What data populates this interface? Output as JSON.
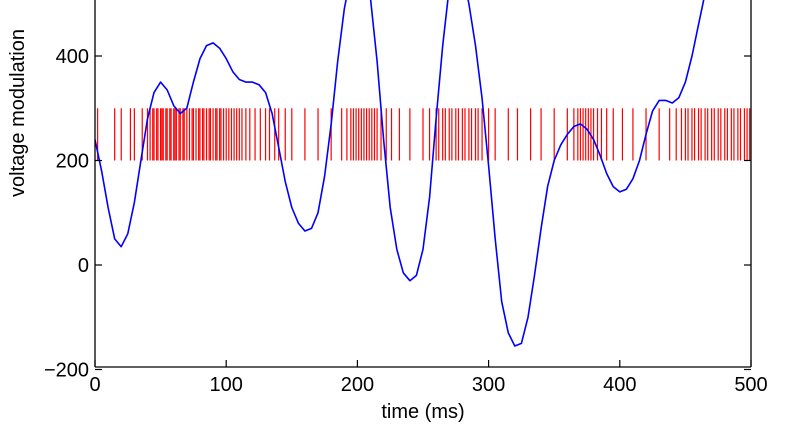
{
  "chart_data": {
    "type": "line",
    "title": "",
    "xlabel": "time (ms)",
    "ylabel": "voltage modulation",
    "xlim": [
      0,
      500
    ],
    "ylim": [
      -200,
      580
    ],
    "xticks": [
      0,
      100,
      200,
      300,
      400,
      500
    ],
    "xtick_labels": [
      "0",
      "100",
      "200",
      "300",
      "400",
      "500"
    ],
    "yticks": [
      -200,
      0,
      200,
      400
    ],
    "ytick_labels": [
      "−200",
      "0",
      "200",
      "400"
    ],
    "grid": false,
    "legend": "none",
    "colors": {
      "series": "#0000ff",
      "spikes": "#ff0000"
    },
    "series": [
      {
        "x": [
          0,
          5,
          10,
          15,
          20,
          25,
          30,
          35,
          40,
          45,
          50,
          55,
          60,
          65,
          70,
          75,
          80,
          85,
          90,
          95,
          100,
          105,
          110,
          115,
          120,
          125,
          130,
          135,
          140,
          145,
          150,
          155,
          160,
          165,
          170,
          175,
          180,
          185,
          190,
          195,
          200,
          205,
          210,
          215,
          220,
          225,
          230,
          235,
          240,
          245,
          250,
          255,
          260,
          265,
          270,
          275,
          280,
          285,
          290,
          295,
          300,
          305,
          310,
          315,
          320,
          325,
          330,
          335,
          340,
          345,
          350,
          355,
          360,
          365,
          370,
          375,
          380,
          385,
          390,
          395,
          400,
          405,
          410,
          415,
          420,
          425,
          430,
          435,
          440,
          445,
          450,
          455,
          460,
          465,
          470,
          475,
          480,
          485,
          490,
          495,
          500
        ],
        "values": [
          240,
          180,
          110,
          50,
          35,
          60,
          120,
          200,
          280,
          330,
          350,
          335,
          305,
          290,
          300,
          350,
          395,
          420,
          425,
          415,
          395,
          370,
          355,
          350,
          350,
          345,
          330,
          290,
          225,
          160,
          110,
          80,
          65,
          70,
          100,
          170,
          270,
          390,
          490,
          555,
          590,
          570,
          510,
          390,
          240,
          110,
          30,
          -15,
          -30,
          -20,
          30,
          130,
          280,
          420,
          530,
          575,
          560,
          500,
          420,
          320,
          190,
          50,
          -70,
          -130,
          -155,
          -150,
          -100,
          -20,
          70,
          150,
          200,
          230,
          250,
          265,
          270,
          260,
          240,
          210,
          175,
          150,
          140,
          145,
          165,
          200,
          250,
          295,
          315,
          315,
          310,
          320,
          350,
          400,
          460,
          520,
          570,
          590,
          580,
          570,
          560,
          555,
          550
        ]
      }
    ],
    "spikes": {
      "ymin": 200,
      "ymax": 300,
      "times": [
        2,
        15,
        20,
        27,
        30,
        36,
        40,
        42,
        44,
        45,
        47,
        48,
        50,
        51,
        52,
        54,
        55,
        57,
        58,
        60,
        61,
        62,
        64,
        65,
        67,
        68,
        70,
        72,
        74,
        75,
        77,
        79,
        80,
        82,
        83,
        85,
        87,
        88,
        90,
        92,
        93,
        95,
        96,
        98,
        100,
        102,
        104,
        106,
        108,
        110,
        112,
        115,
        118,
        122,
        126,
        130,
        133,
        137,
        140,
        145,
        150,
        160,
        170,
        180,
        188,
        192,
        195,
        197,
        199,
        201,
        203,
        205,
        207,
        209,
        211,
        213,
        215,
        218,
        222,
        226,
        232,
        240,
        250,
        255,
        260,
        262,
        265,
        267,
        270,
        272,
        275,
        277,
        280,
        282,
        285,
        287,
        290,
        292,
        295,
        300,
        305,
        315,
        322,
        332,
        340,
        350,
        360,
        365,
        368,
        370,
        372,
        374,
        376,
        378,
        380,
        383,
        386,
        390,
        395,
        402,
        410,
        420,
        430,
        438,
        443,
        447,
        450,
        452,
        455,
        457,
        460,
        462,
        465,
        467,
        470,
        472,
        475,
        477,
        480,
        482,
        485,
        487,
        490,
        492,
        495,
        497,
        499
      ]
    }
  }
}
